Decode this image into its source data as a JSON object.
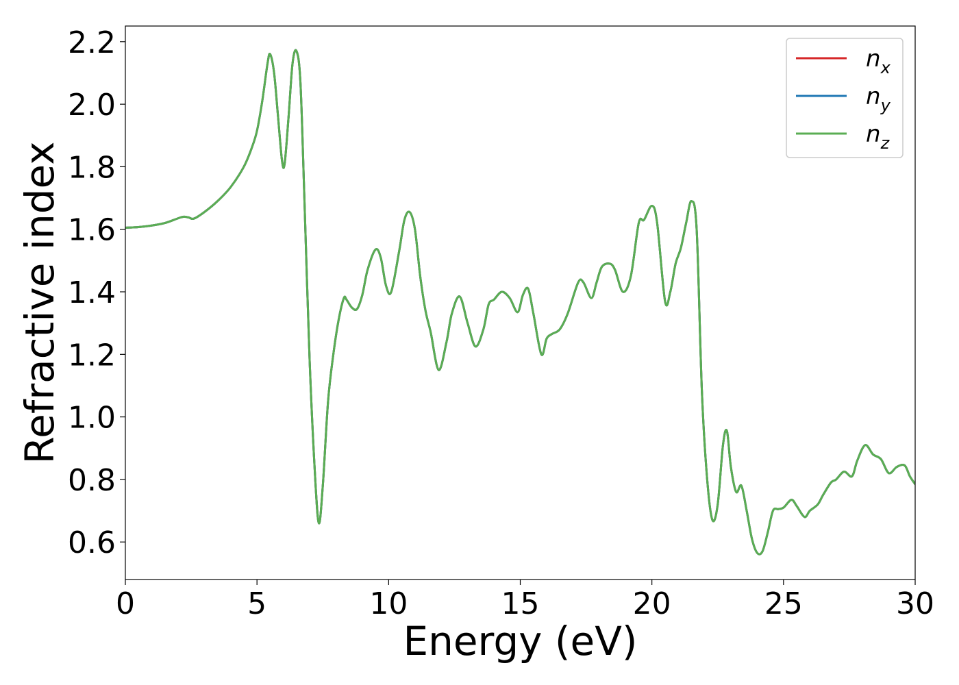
{
  "chart_data": {
    "type": "line",
    "title": "",
    "xlabel": "Energy (eV)",
    "ylabel": "Refractive index",
    "xlim": [
      0,
      30
    ],
    "ylim": [
      0.48,
      2.25
    ],
    "xticks": [
      0,
      5,
      10,
      15,
      20,
      25,
      30
    ],
    "xtick_labels": [
      "0",
      "5",
      "10",
      "15",
      "20",
      "25",
      "30"
    ],
    "yticks": [
      0.6,
      0.8,
      1.0,
      1.2,
      1.4,
      1.6,
      1.8,
      2.0,
      2.2
    ],
    "ytick_labels": [
      "0.6",
      "0.8",
      "1.0",
      "1.2",
      "1.4",
      "1.6",
      "1.8",
      "2.0",
      "2.2"
    ],
    "grid": false,
    "legend_position": "top-right",
    "x": [
      0,
      0.5,
      1,
      1.5,
      2,
      2.2,
      2.4,
      2.6,
      3,
      3.5,
      4,
      4.5,
      4.8,
      5,
      5.2,
      5.4,
      5.5,
      5.65,
      5.8,
      5.95,
      6.05,
      6.2,
      6.35,
      6.5,
      6.65,
      6.8,
      7,
      7.2,
      7.35,
      7.5,
      7.7,
      7.9,
      8.1,
      8.3,
      8.4,
      8.6,
      8.8,
      9,
      9.2,
      9.5,
      9.7,
      9.9,
      10.1,
      10.4,
      10.6,
      10.8,
      11,
      11.2,
      11.4,
      11.6,
      11.9,
      12.2,
      12.4,
      12.7,
      13,
      13.3,
      13.6,
      13.8,
      14,
      14.3,
      14.6,
      14.9,
      15.1,
      15.3,
      15.5,
      15.8,
      16,
      16.2,
      16.5,
      16.8,
      17.2,
      17.4,
      17.7,
      17.9,
      18.1,
      18.4,
      18.6,
      18.9,
      19.2,
      19.5,
      19.7,
      20,
      20.2,
      20.5,
      20.7,
      20.9,
      21.1,
      21.3,
      21.5,
      21.7,
      21.9,
      22.1,
      22.3,
      22.5,
      22.7,
      22.85,
      23,
      23.2,
      23.4,
      23.6,
      23.8,
      24,
      24.2,
      24.4,
      24.6,
      24.8,
      25,
      25.3,
      25.5,
      25.8,
      26,
      26.3,
      26.5,
      26.8,
      27,
      27.3,
      27.6,
      27.8,
      28.1,
      28.4,
      28.7,
      29,
      29.3,
      29.6,
      29.8,
      30
    ],
    "series": [
      {
        "name": "n_x",
        "legend_base": "n",
        "legend_sub": "x",
        "color": "#d62728",
        "values": [
          1.605,
          1.607,
          1.612,
          1.62,
          1.635,
          1.64,
          1.638,
          1.634,
          1.655,
          1.69,
          1.735,
          1.8,
          1.86,
          1.915,
          2.01,
          2.13,
          2.16,
          2.1,
          1.96,
          1.82,
          1.81,
          1.96,
          2.13,
          2.17,
          2.07,
          1.7,
          1.18,
          0.82,
          0.66,
          0.78,
          1.05,
          1.2,
          1.31,
          1.38,
          1.375,
          1.35,
          1.345,
          1.39,
          1.47,
          1.535,
          1.51,
          1.42,
          1.4,
          1.53,
          1.63,
          1.655,
          1.6,
          1.45,
          1.34,
          1.27,
          1.15,
          1.24,
          1.33,
          1.385,
          1.3,
          1.225,
          1.28,
          1.36,
          1.375,
          1.4,
          1.38,
          1.335,
          1.39,
          1.41,
          1.33,
          1.2,
          1.25,
          1.265,
          1.28,
          1.33,
          1.43,
          1.43,
          1.38,
          1.43,
          1.48,
          1.49,
          1.47,
          1.4,
          1.45,
          1.62,
          1.63,
          1.675,
          1.62,
          1.37,
          1.4,
          1.49,
          1.54,
          1.62,
          1.69,
          1.6,
          1.08,
          0.8,
          0.67,
          0.72,
          0.91,
          0.955,
          0.84,
          0.76,
          0.78,
          0.7,
          0.61,
          0.565,
          0.57,
          0.63,
          0.7,
          0.705,
          0.71,
          0.735,
          0.715,
          0.68,
          0.7,
          0.72,
          0.75,
          0.79,
          0.8,
          0.825,
          0.81,
          0.86,
          0.91,
          0.88,
          0.865,
          0.82,
          0.84,
          0.845,
          0.81,
          0.785
        ]
      },
      {
        "name": "n_y",
        "legend_base": "n",
        "legend_sub": "y",
        "color": "#1f77b4",
        "values": [
          1.605,
          1.607,
          1.612,
          1.62,
          1.635,
          1.64,
          1.638,
          1.634,
          1.655,
          1.69,
          1.735,
          1.8,
          1.86,
          1.915,
          2.01,
          2.13,
          2.16,
          2.1,
          1.96,
          1.82,
          1.81,
          1.96,
          2.13,
          2.17,
          2.07,
          1.7,
          1.18,
          0.82,
          0.66,
          0.78,
          1.05,
          1.2,
          1.31,
          1.38,
          1.375,
          1.35,
          1.345,
          1.39,
          1.47,
          1.535,
          1.51,
          1.42,
          1.4,
          1.53,
          1.63,
          1.655,
          1.6,
          1.45,
          1.34,
          1.27,
          1.15,
          1.24,
          1.33,
          1.385,
          1.3,
          1.225,
          1.28,
          1.36,
          1.375,
          1.4,
          1.38,
          1.335,
          1.39,
          1.41,
          1.33,
          1.2,
          1.25,
          1.265,
          1.28,
          1.33,
          1.43,
          1.43,
          1.38,
          1.43,
          1.48,
          1.49,
          1.47,
          1.4,
          1.45,
          1.62,
          1.63,
          1.675,
          1.62,
          1.37,
          1.4,
          1.49,
          1.54,
          1.62,
          1.69,
          1.6,
          1.08,
          0.8,
          0.67,
          0.72,
          0.91,
          0.955,
          0.84,
          0.76,
          0.78,
          0.7,
          0.61,
          0.565,
          0.57,
          0.63,
          0.7,
          0.705,
          0.71,
          0.735,
          0.715,
          0.68,
          0.7,
          0.72,
          0.75,
          0.79,
          0.8,
          0.825,
          0.81,
          0.86,
          0.91,
          0.88,
          0.865,
          0.82,
          0.84,
          0.845,
          0.81,
          0.785
        ]
      },
      {
        "name": "n_z",
        "legend_base": "n",
        "legend_sub": "z",
        "color": "#5aad53",
        "values": [
          1.605,
          1.607,
          1.612,
          1.62,
          1.635,
          1.64,
          1.638,
          1.634,
          1.655,
          1.69,
          1.735,
          1.8,
          1.86,
          1.915,
          2.01,
          2.13,
          2.16,
          2.1,
          1.96,
          1.82,
          1.81,
          1.96,
          2.13,
          2.17,
          2.07,
          1.7,
          1.18,
          0.82,
          0.66,
          0.78,
          1.05,
          1.2,
          1.31,
          1.38,
          1.375,
          1.35,
          1.345,
          1.39,
          1.47,
          1.535,
          1.51,
          1.42,
          1.4,
          1.53,
          1.63,
          1.655,
          1.6,
          1.45,
          1.34,
          1.27,
          1.15,
          1.24,
          1.33,
          1.385,
          1.3,
          1.225,
          1.28,
          1.36,
          1.375,
          1.4,
          1.38,
          1.335,
          1.39,
          1.41,
          1.33,
          1.2,
          1.25,
          1.265,
          1.28,
          1.33,
          1.43,
          1.43,
          1.38,
          1.43,
          1.48,
          1.49,
          1.47,
          1.4,
          1.45,
          1.62,
          1.63,
          1.675,
          1.62,
          1.37,
          1.4,
          1.49,
          1.54,
          1.62,
          1.69,
          1.6,
          1.08,
          0.8,
          0.67,
          0.72,
          0.91,
          0.955,
          0.84,
          0.76,
          0.78,
          0.7,
          0.61,
          0.565,
          0.57,
          0.63,
          0.7,
          0.705,
          0.71,
          0.735,
          0.715,
          0.68,
          0.7,
          0.72,
          0.75,
          0.79,
          0.8,
          0.825,
          0.81,
          0.86,
          0.91,
          0.88,
          0.865,
          0.82,
          0.84,
          0.845,
          0.81,
          0.785
        ]
      }
    ]
  }
}
